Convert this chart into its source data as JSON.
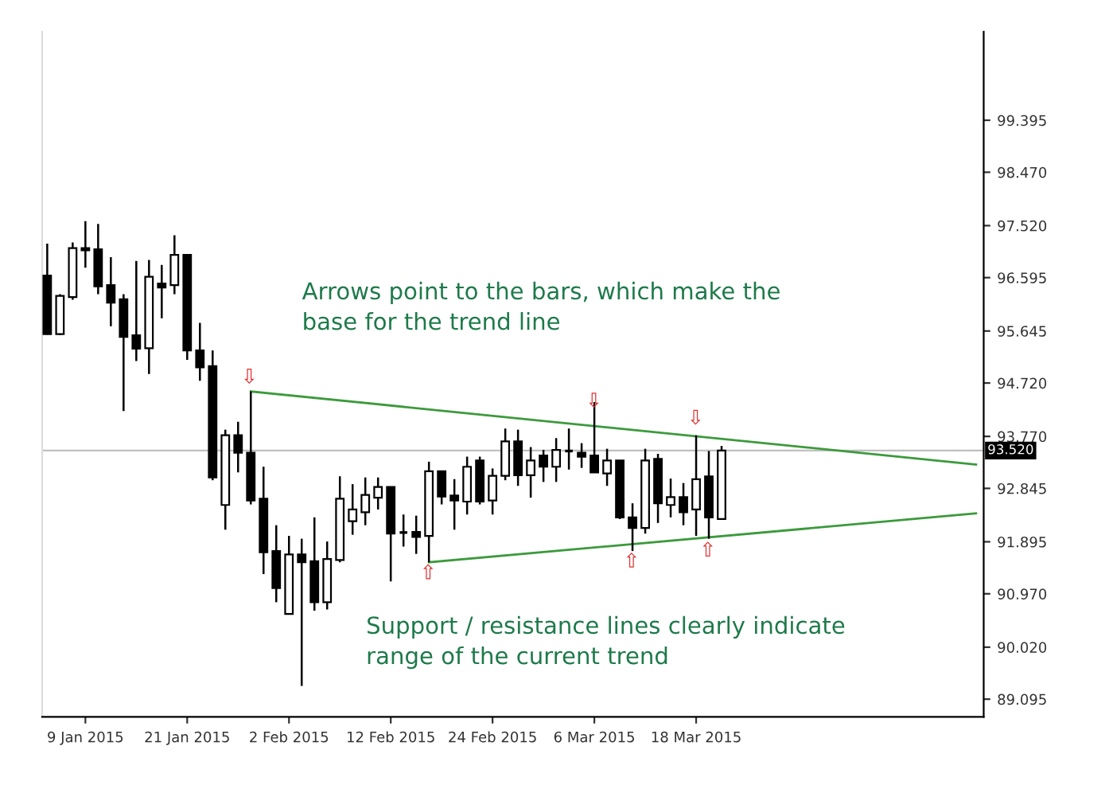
{
  "chart_data": {
    "type": "candlestick",
    "categories": [
      null,
      null,
      null,
      "9 Jan 2015",
      null,
      null,
      null,
      null,
      null,
      null,
      null,
      "21 Jan 2015",
      null,
      null,
      null,
      null,
      null,
      null,
      null,
      "2 Feb 2015",
      null,
      null,
      null,
      null,
      null,
      null,
      null,
      "12 Feb 2015",
      null,
      null,
      null,
      null,
      null,
      null,
      null,
      "24 Feb 2015",
      null,
      null,
      null,
      null,
      null,
      null,
      null,
      "6 Mar 2015",
      null,
      null,
      null,
      null,
      null,
      null,
      null,
      "18 Mar 2015",
      null,
      null,
      null,
      null,
      null,
      null,
      null,
      null,
      null,
      null,
      null,
      null,
      null,
      null,
      null,
      null,
      null,
      null,
      null,
      null,
      null,
      null
    ],
    "ohlc": [
      [
        96.63,
        97.2,
        95.58,
        95.59
      ],
      [
        95.59,
        96.3,
        95.57,
        96.27
      ],
      [
        96.25,
        97.22,
        96.2,
        97.12
      ],
      [
        97.12,
        97.6,
        96.77,
        97.08
      ],
      [
        97.1,
        97.55,
        96.3,
        96.44
      ],
      [
        96.46,
        96.96,
        95.73,
        96.15
      ],
      [
        96.21,
        96.3,
        94.22,
        95.54
      ],
      [
        95.57,
        96.89,
        95.11,
        95.33
      ],
      [
        95.34,
        96.91,
        94.88,
        96.61
      ],
      [
        96.49,
        96.82,
        95.87,
        96.42
      ],
      [
        96.46,
        97.35,
        96.3,
        97.0
      ],
      [
        97.0,
        97.0,
        95.13,
        95.3
      ],
      [
        95.3,
        95.79,
        94.76,
        95.0
      ],
      [
        95.02,
        95.3,
        92.99,
        93.04
      ],
      [
        92.55,
        93.89,
        92.11,
        93.79
      ],
      [
        93.79,
        94.03,
        93.13,
        93.48
      ],
      [
        93.48,
        94.57,
        92.56,
        92.63
      ],
      [
        92.66,
        93.23,
        91.32,
        91.71
      ],
      [
        91.73,
        92.19,
        90.82,
        91.07
      ],
      [
        90.61,
        92.0,
        90.61,
        91.67
      ],
      [
        91.67,
        91.95,
        89.33,
        91.53
      ],
      [
        91.55,
        92.33,
        90.67,
        90.82
      ],
      [
        90.82,
        91.9,
        90.69,
        91.59
      ],
      [
        91.57,
        93.06,
        91.53,
        92.66
      ],
      [
        92.26,
        92.92,
        92.02,
        92.47
      ],
      [
        92.42,
        93.04,
        92.19,
        92.73
      ],
      [
        92.68,
        93.04,
        92.47,
        92.87
      ],
      [
        92.87,
        92.87,
        91.19,
        92.04
      ],
      [
        92.06,
        92.38,
        91.81,
        92.06
      ],
      [
        92.07,
        92.36,
        91.68,
        91.98
      ],
      [
        92.0,
        93.32,
        91.53,
        93.15
      ],
      [
        93.15,
        93.15,
        92.56,
        92.7
      ],
      [
        92.72,
        93.01,
        92.11,
        92.63
      ],
      [
        92.61,
        93.41,
        92.38,
        93.23
      ],
      [
        93.34,
        93.41,
        92.56,
        92.61
      ],
      [
        92.63,
        93.2,
        92.38,
        93.07
      ],
      [
        93.07,
        93.91,
        92.99,
        93.68
      ],
      [
        93.68,
        93.89,
        92.89,
        93.08
      ],
      [
        93.08,
        93.58,
        92.68,
        93.34
      ],
      [
        93.43,
        93.53,
        92.96,
        93.23
      ],
      [
        93.23,
        93.74,
        92.96,
        93.53
      ],
      [
        93.51,
        93.91,
        93.18,
        93.51
      ],
      [
        93.48,
        93.65,
        93.21,
        93.41
      ],
      [
        93.43,
        94.38,
        93.12,
        93.13
      ],
      [
        93.11,
        93.55,
        92.89,
        93.34
      ],
      [
        93.34,
        93.34,
        92.3,
        92.33
      ],
      [
        92.33,
        92.58,
        91.73,
        92.14
      ],
      [
        92.14,
        93.55,
        92.04,
        93.34
      ],
      [
        93.37,
        93.46,
        92.23,
        92.58
      ],
      [
        92.55,
        93.02,
        92.33,
        92.69
      ],
      [
        92.69,
        92.94,
        92.19,
        92.42
      ],
      [
        92.47,
        93.79,
        92.0,
        93.01
      ],
      [
        93.06,
        93.51,
        91.95,
        92.33
      ],
      [
        92.3,
        93.6,
        92.3,
        93.52
      ],
      null,
      null,
      null,
      null,
      null,
      null,
      null,
      null,
      null,
      null,
      null,
      null,
      null,
      null,
      null,
      null,
      null,
      null,
      null,
      null
    ],
    "series": [
      {
        "type": "line",
        "color": "#3c9a3c",
        "values": [
          null,
          null,
          null,
          null,
          null,
          null,
          null,
          null,
          null,
          null,
          null,
          null,
          null,
          null,
          null,
          null,
          94.57,
          null,
          null,
          null,
          null,
          null,
          null,
          null,
          null,
          null,
          null,
          null,
          null,
          null,
          null,
          null,
          null,
          null,
          null,
          null,
          null,
          null,
          null,
          null,
          null,
          null,
          null,
          null,
          null,
          null,
          null,
          null,
          null,
          null,
          null,
          null,
          null,
          null,
          null,
          null,
          null,
          null,
          null,
          null,
          null,
          null,
          null,
          null,
          null,
          null,
          null,
          null,
          null,
          null,
          null,
          null,
          null,
          93.27
        ]
      },
      {
        "type": "line",
        "color": "#3c9a3c",
        "values": [
          null,
          null,
          null,
          null,
          null,
          null,
          null,
          null,
          null,
          null,
          null,
          null,
          null,
          null,
          null,
          null,
          null,
          null,
          null,
          null,
          null,
          null,
          null,
          null,
          null,
          null,
          null,
          null,
          null,
          null,
          91.53,
          null,
          null,
          null,
          null,
          null,
          null,
          null,
          null,
          null,
          null,
          null,
          null,
          null,
          null,
          null,
          null,
          null,
          null,
          null,
          null,
          null,
          null,
          null,
          null,
          null,
          null,
          null,
          null,
          null,
          null,
          null,
          null,
          null,
          null,
          null,
          null,
          null,
          null,
          null,
          null,
          null,
          null,
          92.4
        ]
      }
    ],
    "ylim": [
      88.78,
      100.97
    ],
    "yticks": [
      89.095,
      {
        "value": 90.02,
        "label": "90.020"
      },
      {
        "value": 90.97,
        "label": "90.970"
      },
      91.895,
      92.845,
      {
        "value": 93.77,
        "label": "93.770"
      },
      {
        "value": 94.72,
        "label": "94.720"
      },
      95.645,
      96.595,
      {
        "value": 97.52,
        "label": "97.520"
      },
      {
        "value": 98.47,
        "label": "98.470"
      },
      99.395
    ],
    "ref_lines": [
      {
        "axis": "y",
        "value": 93.52,
        "label": "93.520",
        "color": "#c0c0c0"
      }
    ],
    "annotations": [
      "Arrows point to the bars, which make the\nbase for the trend line",
      "Support / resistance lines clearly indicate\nrange of the current trend",
      "⇩",
      "⇩",
      "⇩",
      "⇧",
      "⇧",
      "⇧"
    ]
  }
}
